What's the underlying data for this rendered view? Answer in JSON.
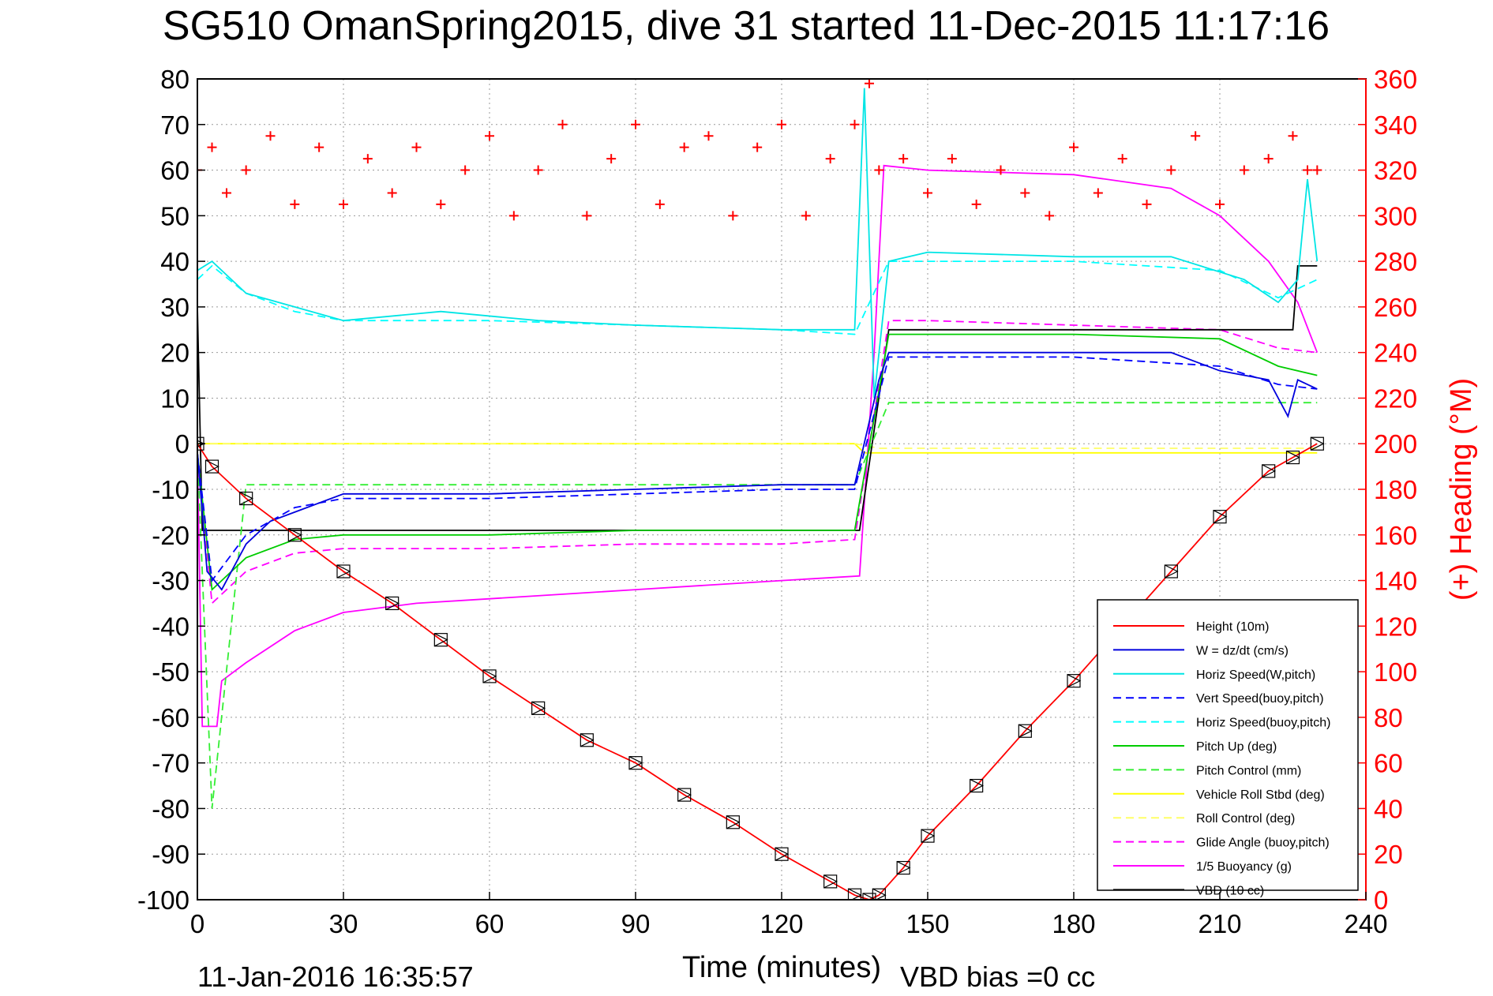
{
  "chart_data": {
    "type": "line",
    "title": "SG510 OmanSpring2015, dive 31 started 11-Dec-2015 11:17:16",
    "xlabel": "Time (minutes)",
    "ylabel_right": "(+) Heading (°M)",
    "xlim": [
      0,
      240
    ],
    "ylim_left": [
      -100,
      80
    ],
    "ylim_right": [
      0,
      360
    ],
    "x_ticks": [
      "0",
      "30",
      "60",
      "90",
      "120",
      "150",
      "180",
      "210",
      "240"
    ],
    "y_ticks_left": [
      "80",
      "70",
      "60",
      "50",
      "40",
      "30",
      "20",
      "10",
      "0",
      "-10",
      "-20",
      "-30",
      "-40",
      "-50",
      "-60",
      "-70",
      "-80",
      "-90",
      "-100"
    ],
    "y_ticks_right": [
      "360",
      "340",
      "320",
      "300",
      "280",
      "260",
      "240",
      "220",
      "200",
      "180",
      "160",
      "140",
      "120",
      "100",
      "80",
      "60",
      "40",
      "20",
      "0"
    ],
    "grid": true,
    "legend_position": "bottom-right",
    "footer_date": "11-Jan-2016 16:35:57",
    "footer_vbd": "VBD bias =0 cc",
    "series": [
      {
        "name": "Height (10m)",
        "color": "#ff0000",
        "style": "solid",
        "axis": "left",
        "x": [
          0,
          3,
          10,
          20,
          30,
          40,
          50,
          60,
          70,
          80,
          90,
          100,
          110,
          120,
          130,
          135,
          138,
          140,
          145,
          150,
          160,
          170,
          180,
          190,
          200,
          210,
          220,
          225,
          230
        ],
        "y": [
          0,
          -5,
          -12,
          -20,
          -28,
          -35,
          -43,
          -51,
          -58,
          -65,
          -70,
          -77,
          -83,
          -90,
          -96,
          -99,
          -100,
          -99,
          -93,
          -86,
          -75,
          -63,
          -52,
          -40,
          -28,
          -16,
          -6,
          -3,
          0
        ]
      },
      {
        "name": "W = dz/dt (cm/s)",
        "color": "#0000dd",
        "style": "solid",
        "axis": "left",
        "x": [
          0,
          2,
          5,
          10,
          15,
          20,
          25,
          30,
          45,
          60,
          90,
          120,
          135,
          140,
          142,
          150,
          180,
          200,
          210,
          220,
          224,
          226,
          230
        ],
        "y": [
          -2,
          -28,
          -32,
          -22,
          -17,
          -15,
          -13,
          -11,
          -11,
          -11,
          -10,
          -9,
          -9,
          14,
          20,
          20,
          20,
          20,
          16,
          14,
          6,
          14,
          12
        ]
      },
      {
        "name": "Horiz Speed(W,pitch)",
        "color": "#00e5e5",
        "style": "solid",
        "axis": "left",
        "x": [
          0,
          3,
          10,
          20,
          30,
          50,
          70,
          90,
          120,
          135,
          137,
          139,
          142,
          150,
          180,
          200,
          215,
          222,
          226,
          228,
          230
        ],
        "y": [
          38,
          40,
          33,
          30,
          27,
          29,
          27,
          26,
          25,
          25,
          78,
          10,
          40,
          42,
          41,
          41,
          36,
          31,
          36,
          58,
          40
        ]
      },
      {
        "name": "Vert Speed(buoy,pitch)",
        "color": "#0000ff",
        "style": "dashed",
        "axis": "left",
        "x": [
          0,
          3,
          10,
          20,
          30,
          60,
          90,
          120,
          135,
          142,
          150,
          180,
          210,
          222,
          230
        ],
        "y": [
          -2,
          -30,
          -20,
          -14,
          -12,
          -12,
          -11,
          -10,
          -10,
          19,
          19,
          19,
          17,
          13,
          12
        ]
      },
      {
        "name": "Horiz Speed(buoy,pitch)",
        "color": "#00ffff",
        "style": "dashed",
        "axis": "left",
        "x": [
          0,
          3,
          10,
          20,
          30,
          60,
          90,
          120,
          135,
          142,
          150,
          180,
          210,
          222,
          230
        ],
        "y": [
          36,
          39,
          33,
          29,
          27,
          27,
          26,
          25,
          24,
          40,
          40,
          40,
          38,
          32,
          36
        ]
      },
      {
        "name": "Pitch Up (deg)",
        "color": "#00cc00",
        "style": "solid",
        "axis": "left",
        "x": [
          0,
          3,
          10,
          20,
          30,
          60,
          90,
          120,
          135,
          142,
          150,
          180,
          210,
          222,
          230
        ],
        "y": [
          -2,
          -32,
          -25,
          -21,
          -20,
          -20,
          -19,
          -19,
          -19,
          24,
          24,
          24,
          23,
          17,
          15
        ]
      },
      {
        "name": "Pitch Control (mm)",
        "color": "#33ee33",
        "style": "dashed",
        "axis": "left",
        "x": [
          0,
          3,
          10,
          20,
          30,
          60,
          90,
          120,
          135,
          142,
          150,
          180,
          210,
          222,
          230
        ],
        "y": [
          -2,
          -80,
          -9,
          -9,
          -9,
          -9,
          -9,
          -9,
          -9,
          9,
          9,
          9,
          9,
          9,
          9
        ]
      },
      {
        "name": "Vehicle Roll Stbd (deg)",
        "color": "#ffff00",
        "style": "solid",
        "axis": "left",
        "x": [
          0,
          30,
          60,
          90,
          120,
          135,
          137,
          140,
          150,
          180,
          210,
          225,
          230
        ],
        "y": [
          0,
          0,
          0,
          0,
          0,
          0,
          -2,
          -2,
          -2,
          -2,
          -2,
          -2,
          -2
        ]
      },
      {
        "name": "Roll Control (deg)",
        "color": "#ffff66",
        "style": "dashed",
        "axis": "left",
        "x": [
          0,
          30,
          60,
          90,
          120,
          135,
          140,
          150,
          180,
          210,
          230
        ],
        "y": [
          0,
          0,
          0,
          0,
          0,
          0,
          -1,
          -1,
          -1,
          -1,
          -1
        ]
      },
      {
        "name": "Glide Angle (buoy,pitch)",
        "color": "#ff00ff",
        "style": "dashed",
        "axis": "left",
        "x": [
          0,
          3,
          10,
          20,
          30,
          60,
          90,
          120,
          135,
          142,
          150,
          180,
          210,
          222,
          230
        ],
        "y": [
          -2,
          -35,
          -28,
          -24,
          -23,
          -23,
          -22,
          -22,
          -21,
          27,
          27,
          26,
          25,
          21,
          20
        ]
      },
      {
        "name": "1/5 Buoyancy (g)",
        "color": "#ff00ff",
        "style": "solid",
        "axis": "left",
        "x": [
          0,
          1,
          4,
          5,
          10,
          20,
          30,
          45,
          60,
          90,
          120,
          136,
          139,
          141,
          150,
          180,
          200,
          210,
          220,
          226,
          230
        ],
        "y": [
          -2,
          -62,
          -62,
          -52,
          -48,
          -41,
          -37,
          -35,
          -34,
          -32,
          -30,
          -29,
          20,
          61,
          60,
          59,
          56,
          50,
          40,
          31,
          20
        ]
      },
      {
        "name": "VBD (10 cc)",
        "color": "#000000",
        "style": "solid",
        "axis": "left",
        "x": [
          0,
          1,
          30,
          60,
          90,
          120,
          136,
          142,
          150,
          180,
          210,
          225,
          226,
          230
        ],
        "y": [
          30,
          -19,
          -19,
          -19,
          -19,
          -19,
          -19,
          25,
          25,
          25,
          25,
          25,
          39,
          39
        ]
      },
      {
        "name": "(+) Heading",
        "color": "#ff0000",
        "style": "markers",
        "axis": "right",
        "x": [
          0,
          3,
          6,
          10,
          15,
          20,
          25,
          30,
          35,
          40,
          45,
          50,
          55,
          60,
          65,
          70,
          75,
          80,
          85,
          90,
          95,
          100,
          105,
          110,
          115,
          120,
          125,
          130,
          135,
          138,
          140,
          145,
          150,
          155,
          160,
          165,
          170,
          175,
          180,
          185,
          190,
          195,
          200,
          205,
          210,
          215,
          220,
          225,
          228,
          230
        ],
        "y": [
          320,
          330,
          310,
          320,
          335,
          305,
          330,
          305,
          325,
          310,
          330,
          305,
          320,
          335,
          300,
          320,
          340,
          300,
          325,
          340,
          305,
          330,
          335,
          300,
          330,
          340,
          300,
          325,
          340,
          358,
          320,
          325,
          310,
          325,
          305,
          320,
          310,
          300,
          330,
          310,
          325,
          305,
          320,
          335,
          305,
          320,
          325,
          335,
          320,
          320
        ]
      }
    ]
  }
}
